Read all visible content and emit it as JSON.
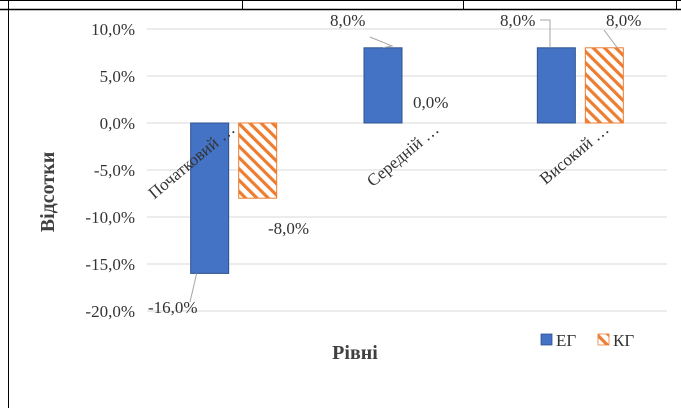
{
  "chart_data": {
    "type": "bar",
    "categories": [
      "Початковий …",
      "Середній …",
      "Високий …"
    ],
    "series": [
      {
        "name": "ЕГ",
        "values": [
          -16.0,
          8.0,
          8.0
        ],
        "color": "#4472C4",
        "pattern": "solid"
      },
      {
        "name": "КГ",
        "values": [
          -8.0,
          0.0,
          8.0
        ],
        "color": "#ED7D31",
        "pattern": "diagonal-hatch"
      }
    ],
    "data_labels": {
      "ЕГ": [
        "-16,0%",
        "8,0%",
        "8,0%"
      ],
      "КГ": [
        "-8,0%",
        "0,0%",
        "8,0%"
      ]
    },
    "y_ticks": [
      "10,0%",
      "5,0%",
      "0,0%",
      "-5,0%",
      "-10,0%",
      "-15,0%",
      "-20,0%"
    ],
    "ylim": [
      -20,
      10
    ],
    "ylabel": "Відсотки",
    "xlabel": "Рівні",
    "grid": true,
    "legend_position": "bottom-right"
  }
}
